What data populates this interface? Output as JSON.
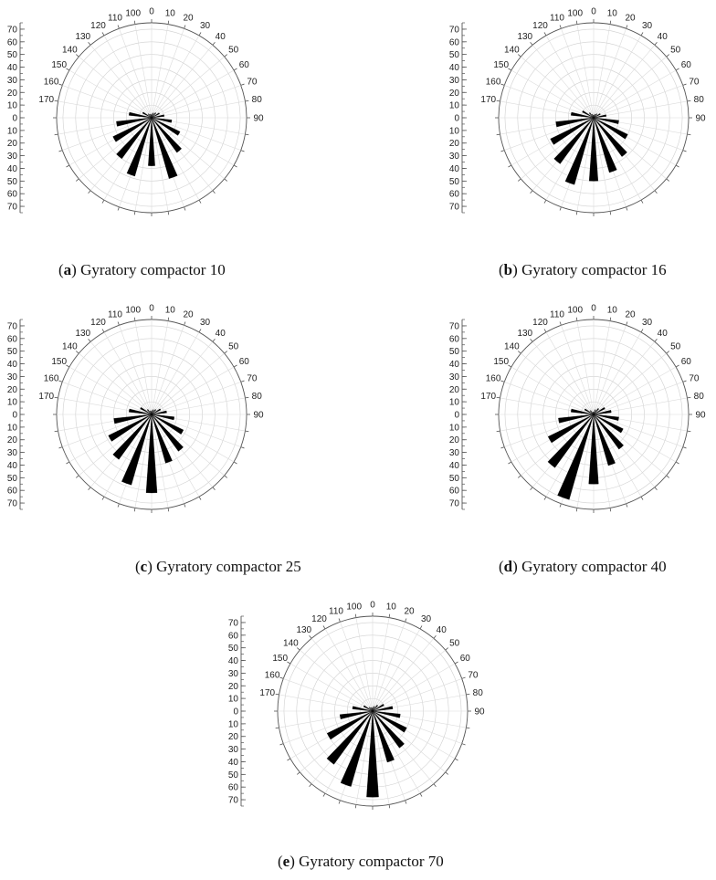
{
  "chart_data": [
    {
      "type": "polar-bar",
      "panel_letter": "a",
      "caption": "Gyratory compactor 10",
      "angle_labels": [
        "0",
        "10",
        "20",
        "30",
        "40",
        "50",
        "60",
        "70",
        "80",
        "90",
        "100",
        "110",
        "120",
        "130",
        "140",
        "150",
        "160",
        "170"
      ],
      "radial_ticks": [
        70,
        60,
        50,
        40,
        30,
        20,
        10,
        0,
        10,
        20,
        30,
        40,
        50,
        60,
        70
      ],
      "rlim": [
        0,
        75
      ],
      "bins_deg": [
        0,
        10,
        20,
        30,
        40,
        50,
        60,
        70,
        80,
        90,
        100,
        110,
        120,
        130,
        140,
        150,
        160,
        170
      ],
      "values": [
        3,
        4,
        5,
        7,
        10,
        16,
        25,
        34,
        50,
        38,
        48,
        40,
        34,
        28,
        18,
        8,
        4,
        3
      ]
    },
    {
      "type": "polar-bar",
      "panel_letter": "b",
      "caption": "Gyratory compactor 16",
      "angle_labels": [
        "0",
        "10",
        "20",
        "30",
        "40",
        "50",
        "60",
        "70",
        "80",
        "90",
        "100",
        "110",
        "120",
        "130",
        "140",
        "150",
        "160",
        "170"
      ],
      "radial_ticks": [
        70,
        60,
        50,
        40,
        30,
        20,
        10,
        0,
        10,
        20,
        30,
        40,
        50,
        60,
        70
      ],
      "rlim": [
        0,
        75
      ],
      "bins_deg": [
        0,
        10,
        20,
        30,
        40,
        50,
        60,
        70,
        80,
        90,
        100,
        110,
        120,
        130,
        140,
        150,
        160,
        170
      ],
      "values": [
        2,
        3,
        4,
        6,
        10,
        20,
        30,
        38,
        45,
        50,
        55,
        45,
        38,
        30,
        18,
        10,
        5,
        3
      ]
    },
    {
      "type": "polar-bar",
      "panel_letter": "c",
      "caption": "Gyratory compactor 25",
      "angle_labels": [
        "0",
        "10",
        "20",
        "30",
        "40",
        "50",
        "60",
        "70",
        "80",
        "90",
        "100",
        "110",
        "120",
        "130",
        "140",
        "150",
        "160",
        "170"
      ],
      "radial_ticks": [
        70,
        60,
        50,
        40,
        30,
        20,
        10,
        0,
        10,
        20,
        30,
        40,
        50,
        60,
        70
      ],
      "rlim": [
        0,
        75
      ],
      "bins_deg": [
        0,
        10,
        20,
        30,
        40,
        50,
        60,
        70,
        80,
        90,
        100,
        110,
        120,
        130,
        140,
        150,
        160,
        170
      ],
      "values": [
        3,
        4,
        5,
        8,
        12,
        18,
        28,
        36,
        40,
        62,
        58,
        44,
        38,
        30,
        18,
        10,
        5,
        3
      ]
    },
    {
      "type": "polar-bar",
      "panel_letter": "d",
      "caption": "Gyratory compactor 40",
      "angle_labels": [
        "0",
        "10",
        "20",
        "30",
        "40",
        "50",
        "60",
        "70",
        "80",
        "90",
        "100",
        "110",
        "120",
        "130",
        "140",
        "150",
        "160",
        "170"
      ],
      "radial_ticks": [
        70,
        60,
        50,
        40,
        30,
        20,
        10,
        0,
        10,
        20,
        30,
        40,
        50,
        60,
        70
      ],
      "rlim": [
        0,
        75
      ],
      "bins_deg": [
        0,
        10,
        20,
        30,
        40,
        50,
        60,
        70,
        80,
        90,
        100,
        110,
        120,
        130,
        140,
        150,
        160,
        170
      ],
      "values": [
        2,
        4,
        6,
        10,
        14,
        20,
        26,
        34,
        42,
        55,
        70,
        52,
        40,
        28,
        18,
        8,
        4,
        2
      ]
    },
    {
      "type": "polar-bar",
      "panel_letter": "e",
      "caption": "Gyratory compactor 70",
      "angle_labels": [
        "0",
        "10",
        "20",
        "30",
        "40",
        "50",
        "60",
        "70",
        "80",
        "90",
        "100",
        "110",
        "120",
        "130",
        "140",
        "150",
        "160",
        "170"
      ],
      "radial_ticks": [
        70,
        60,
        50,
        40,
        30,
        20,
        10,
        0,
        10,
        20,
        30,
        40,
        50,
        60,
        70
      ],
      "rlim": [
        0,
        75
      ],
      "bins_deg": [
        0,
        10,
        20,
        30,
        40,
        50,
        60,
        70,
        80,
        90,
        100,
        110,
        120,
        130,
        140,
        150,
        160,
        170
      ],
      "values": [
        3,
        4,
        6,
        10,
        16,
        22,
        30,
        36,
        42,
        68,
        62,
        52,
        40,
        26,
        16,
        8,
        4,
        3
      ]
    }
  ]
}
